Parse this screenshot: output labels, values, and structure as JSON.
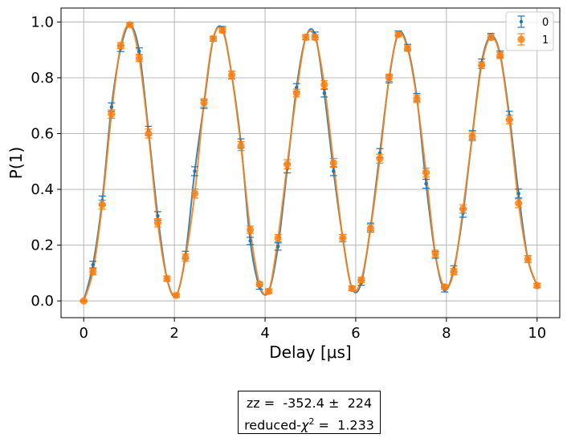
{
  "chart_data": {
    "type": "scatter",
    "xlabel": "Delay [μs]",
    "ylabel": "P(1)",
    "xlim": [
      -0.5,
      10.5
    ],
    "ylim": [
      -0.06,
      1.05
    ],
    "xticks": [
      0,
      2,
      4,
      6,
      8,
      10
    ],
    "xtick_labels": [
      "0",
      "2",
      "4",
      "6",
      "8",
      "10"
    ],
    "yticks": [
      0.0,
      0.2,
      0.4,
      0.6,
      0.8,
      1.0
    ],
    "ytick_labels": [
      "0.0",
      "0.2",
      "0.4",
      "0.6",
      "0.8",
      "1.0"
    ],
    "grid": true,
    "legend_position": "top-right",
    "fit_curve": "sinusoidal fit, period ≈ 2.0 μs, both series overlapping",
    "x": [
      0.0,
      0.204,
      0.408,
      0.612,
      0.816,
      1.02,
      1.224,
      1.429,
      1.633,
      1.837,
      2.041,
      2.245,
      2.449,
      2.653,
      2.857,
      3.061,
      3.265,
      3.469,
      3.673,
      3.878,
      4.082,
      4.286,
      4.49,
      4.694,
      4.898,
      5.102,
      5.306,
      5.51,
      5.714,
      5.918,
      6.122,
      6.327,
      6.531,
      6.735,
      6.939,
      7.143,
      7.347,
      7.551,
      7.755,
      7.959,
      8.163,
      8.367,
      8.571,
      8.776,
      8.98,
      9.184,
      9.388,
      9.592,
      9.796,
      10.0
    ],
    "series": [
      {
        "name": "0",
        "color": "#1f77b4",
        "marker": "dot",
        "values": [
          0.0,
          0.13,
          0.36,
          0.695,
          0.905,
          0.99,
          0.895,
          0.61,
          0.305,
          0.08,
          0.02,
          0.165,
          0.465,
          0.705,
          0.94,
          0.975,
          0.81,
          0.565,
          0.215,
          0.05,
          0.035,
          0.195,
          0.475,
          0.765,
          0.945,
          0.955,
          0.745,
          0.465,
          0.225,
          0.045,
          0.065,
          0.265,
          0.53,
          0.795,
          0.96,
          0.91,
          0.73,
          0.42,
          0.165,
          0.04,
          0.115,
          0.315,
          0.595,
          0.855,
          0.95,
          0.885,
          0.665,
          0.385,
          0.15,
          0.055
        ],
        "errors": [
          0.003,
          0.012,
          0.016,
          0.015,
          0.011,
          0.006,
          0.012,
          0.016,
          0.015,
          0.009,
          0.006,
          0.013,
          0.016,
          0.015,
          0.009,
          0.009,
          0.014,
          0.016,
          0.013,
          0.008,
          0.008,
          0.013,
          0.016,
          0.014,
          0.009,
          0.009,
          0.014,
          0.016,
          0.013,
          0.008,
          0.009,
          0.014,
          0.016,
          0.013,
          0.008,
          0.01,
          0.014,
          0.016,
          0.012,
          0.008,
          0.011,
          0.015,
          0.016,
          0.012,
          0.009,
          0.011,
          0.015,
          0.016,
          0.012,
          0.008
        ]
      },
      {
        "name": "1",
        "color": "#ff7f0e",
        "marker": "circle",
        "values": [
          0.0,
          0.105,
          0.345,
          0.67,
          0.915,
          0.99,
          0.87,
          0.6,
          0.28,
          0.08,
          0.02,
          0.155,
          0.385,
          0.71,
          0.94,
          0.97,
          0.81,
          0.555,
          0.255,
          0.06,
          0.035,
          0.225,
          0.49,
          0.745,
          0.945,
          0.945,
          0.775,
          0.495,
          0.225,
          0.045,
          0.075,
          0.26,
          0.51,
          0.8,
          0.955,
          0.905,
          0.725,
          0.46,
          0.17,
          0.05,
          0.105,
          0.33,
          0.59,
          0.845,
          0.945,
          0.88,
          0.65,
          0.35,
          0.15,
          0.055
        ],
        "errors": [
          0.003,
          0.011,
          0.016,
          0.015,
          0.011,
          0.006,
          0.012,
          0.016,
          0.015,
          0.009,
          0.006,
          0.013,
          0.016,
          0.015,
          0.009,
          0.009,
          0.014,
          0.016,
          0.013,
          0.008,
          0.008,
          0.013,
          0.016,
          0.014,
          0.009,
          0.009,
          0.014,
          0.016,
          0.013,
          0.008,
          0.009,
          0.014,
          0.016,
          0.013,
          0.008,
          0.01,
          0.014,
          0.016,
          0.012,
          0.008,
          0.011,
          0.015,
          0.016,
          0.012,
          0.009,
          0.011,
          0.015,
          0.016,
          0.012,
          0.008
        ]
      }
    ]
  },
  "fit_info": {
    "line1": "zz =  -352.4 ±  224",
    "line2_prefix": "reduced-",
    "chi": "χ",
    "sup": "2",
    "line2_suffix": " =  1.233"
  }
}
